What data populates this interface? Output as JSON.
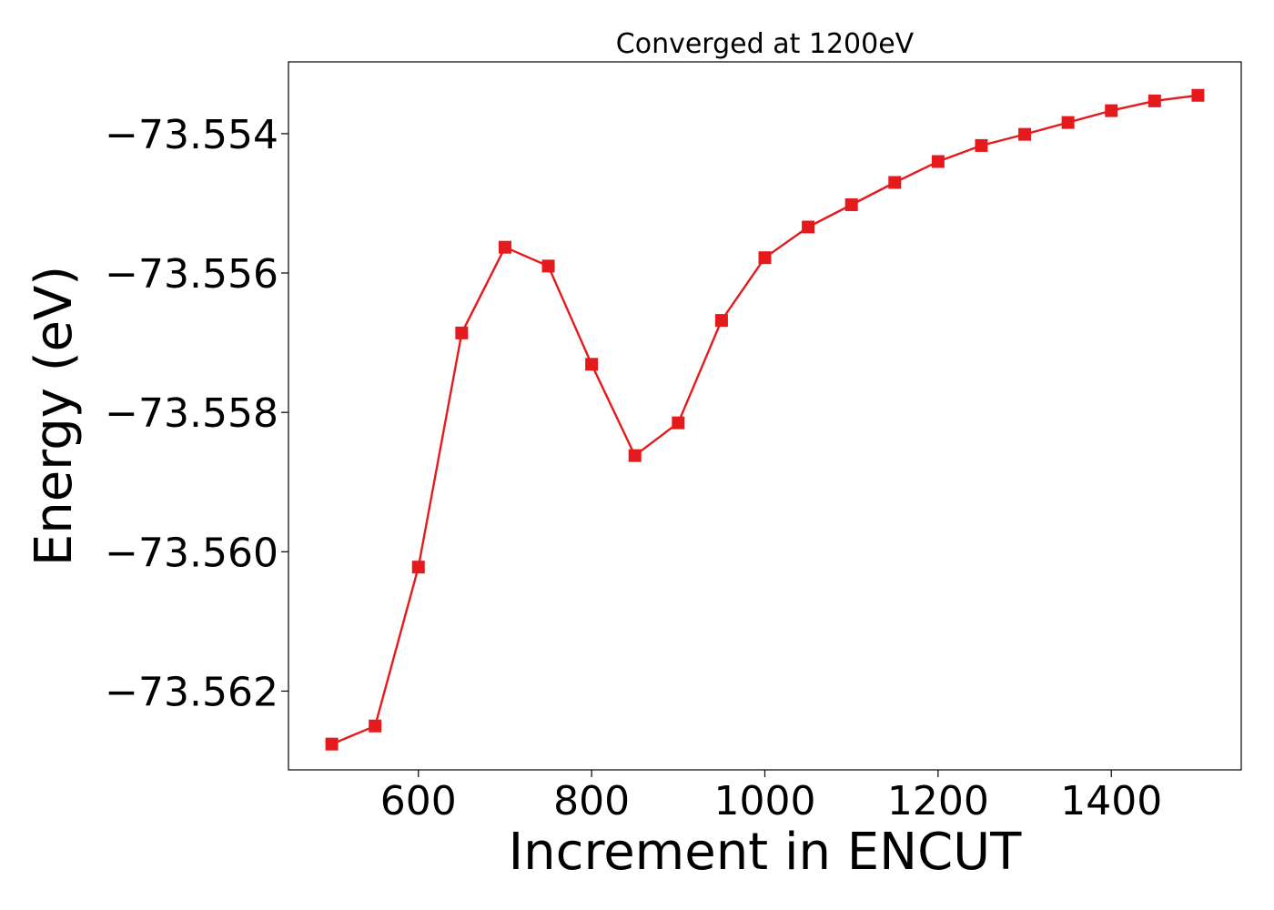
{
  "chart_data": {
    "type": "line",
    "title": "Converged at 1200eV",
    "xlabel": "Increment in ENCUT",
    "ylabel": "Energy (eV)",
    "xlim": [
      450,
      1550
    ],
    "ylim": [
      -73.56313,
      -73.55297
    ],
    "x_ticks": [
      600,
      800,
      1000,
      1200,
      1400
    ],
    "x_tick_labels": [
      "600",
      "800",
      "1000",
      "1200",
      "1400"
    ],
    "y_ticks": [
      -73.554,
      -73.556,
      -73.558,
      -73.56,
      -73.562
    ],
    "y_tick_labels": [
      "−73.554",
      "−73.556",
      "−73.558",
      "−73.560",
      "−73.562"
    ],
    "grid": false,
    "series": [
      {
        "color": "#e41a1c",
        "marker": "square",
        "x": [
          500,
          550,
          600,
          650,
          700,
          750,
          800,
          850,
          900,
          950,
          1000,
          1050,
          1100,
          1150,
          1200,
          1250,
          1300,
          1350,
          1400,
          1450,
          1500
        ],
        "y": [
          -73.56276,
          -73.5625,
          -73.56022,
          -73.55686,
          -73.55563,
          -73.5559,
          -73.55731,
          -73.55862,
          -73.55815,
          -73.55668,
          -73.55578,
          -73.55534,
          -73.55502,
          -73.5547,
          -73.5544,
          -73.55417,
          -73.55401,
          -73.55384,
          -73.55367,
          -73.55353,
          -73.55345
        ]
      }
    ]
  }
}
